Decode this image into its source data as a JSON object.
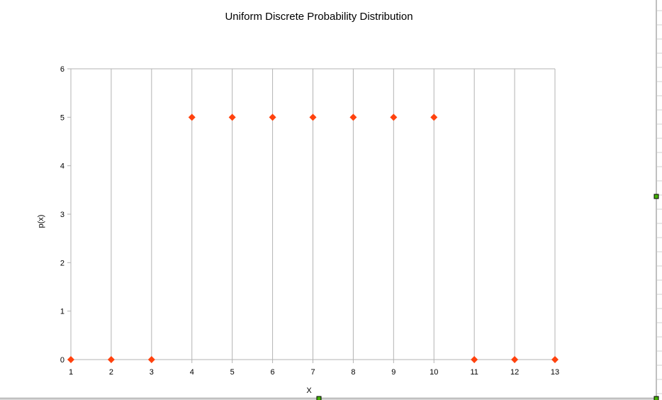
{
  "chart_data": {
    "type": "scatter",
    "title": "Uniform Discrete  Probability Distribution",
    "xlabel": "X",
    "ylabel": "p(x)",
    "xlim": [
      1,
      13
    ],
    "ylim": [
      0,
      6
    ],
    "x_ticks": [
      "1",
      "2",
      "3",
      "4",
      "5",
      "6",
      "7",
      "8",
      "9",
      "10",
      "11",
      "12",
      "13"
    ],
    "y_ticks": [
      "0",
      "1",
      "2",
      "3",
      "4",
      "5",
      "6"
    ],
    "grid": "vertical",
    "marker": "diamond",
    "series": [
      {
        "color": "#ff420e",
        "points": [
          {
            "x": 1,
            "y": 0
          },
          {
            "x": 2,
            "y": 0
          },
          {
            "x": 3,
            "y": 0
          },
          {
            "x": 4,
            "y": 5
          },
          {
            "x": 5,
            "y": 5
          },
          {
            "x": 6,
            "y": 5
          },
          {
            "x": 7,
            "y": 5
          },
          {
            "x": 8,
            "y": 5
          },
          {
            "x": 9,
            "y": 5
          },
          {
            "x": 10,
            "y": 5
          },
          {
            "x": 11,
            "y": 0
          },
          {
            "x": 12,
            "y": 0
          },
          {
            "x": 13,
            "y": 0
          }
        ]
      }
    ]
  },
  "colors": {
    "gridline": "#b3b3b3",
    "axis": "#b3b3b3",
    "selection_handle": "#43b102",
    "frame_edge": "#c0c0c0"
  }
}
